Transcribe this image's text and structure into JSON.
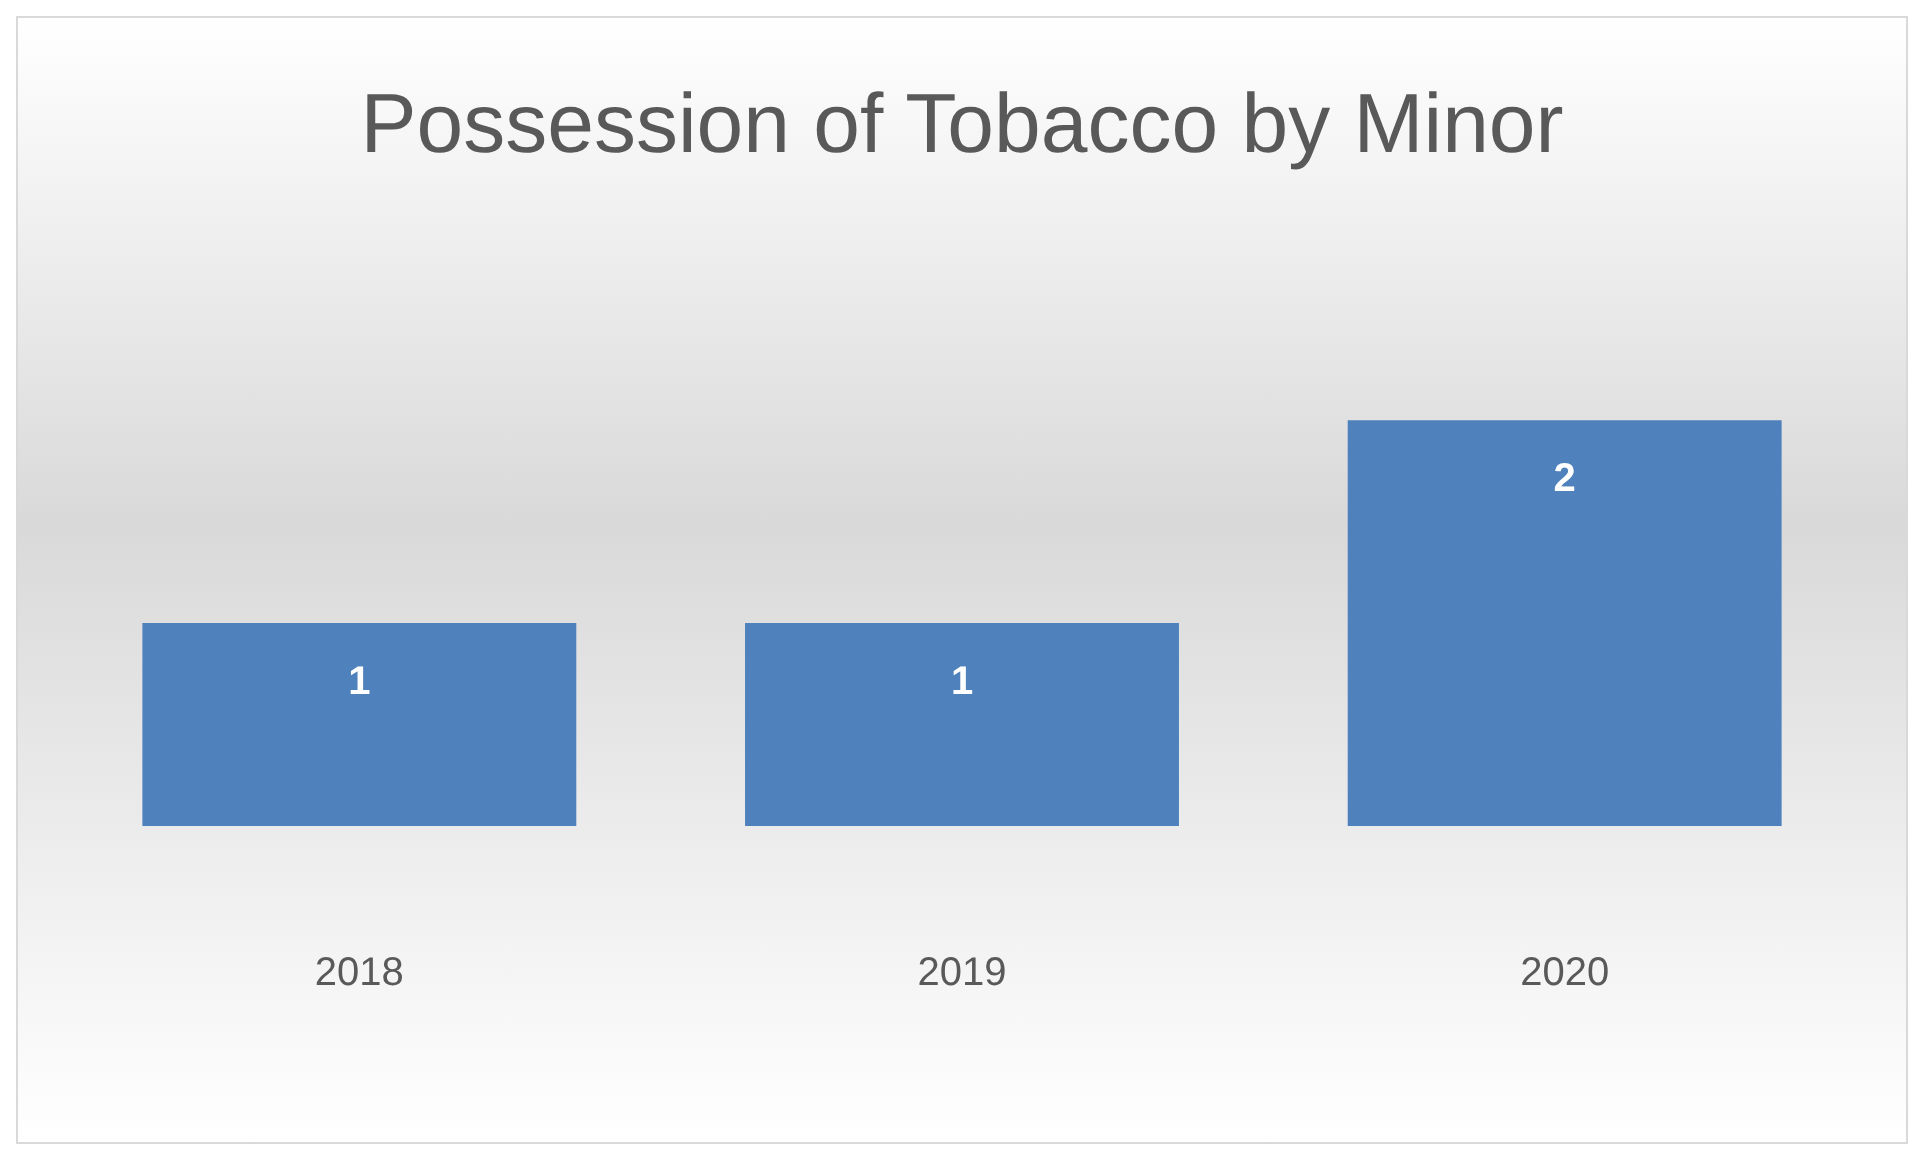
{
  "chart_data": {
    "type": "bar",
    "title": "Possession of Tobacco by Minor",
    "categories": [
      "2018",
      "2019",
      "2020"
    ],
    "values": [
      1,
      1,
      2
    ],
    "color": "#4f81bd",
    "data_labels": true,
    "grid": false,
    "legend": false
  }
}
